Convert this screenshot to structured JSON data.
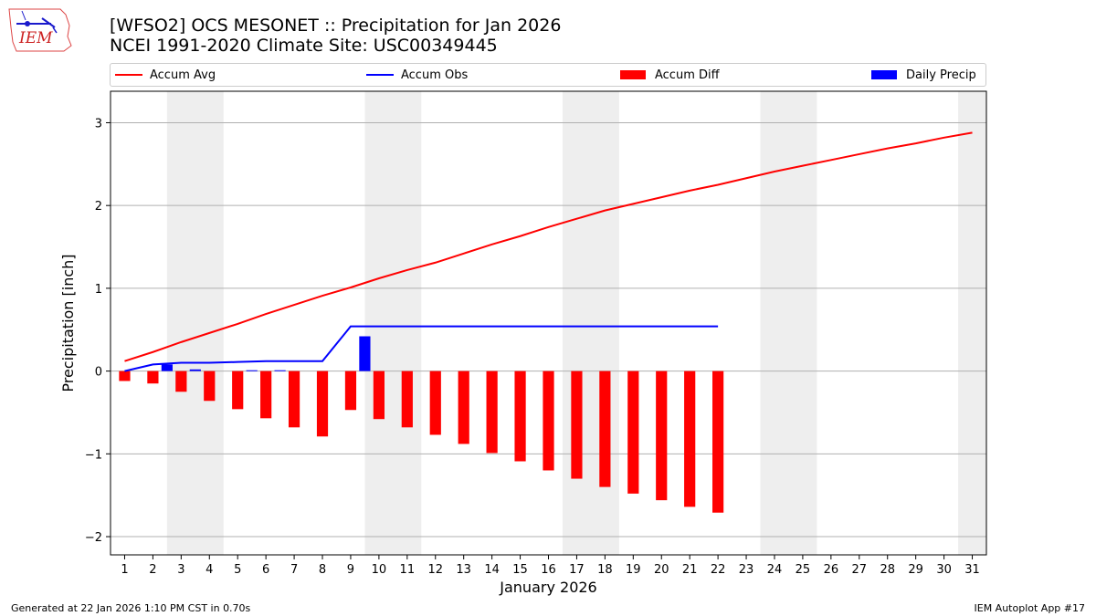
{
  "title_line1": "[WFSO2] OCS MESONET :: Precipitation for Jan 2026",
  "title_line2": "NCEI 1991-2020 Climate Site: USC00349445",
  "logo_text": "IEM",
  "footer_left": "Generated at 22 Jan 2026 1:10 PM CST in 0.70s",
  "footer_right": "IEM Autoplot App #17",
  "colors": {
    "avg": "#ff0000",
    "obs": "#0000ff",
    "diff": "#ff0000",
    "daily": "#0000ff",
    "weekend": "#eeeeee",
    "grid": "#b0b0b0"
  },
  "chart_data": {
    "type": "bar",
    "xlabel": "January 2026",
    "ylabel": "Precipitation [inch]",
    "xlim": [
      0.5,
      31.5
    ],
    "ylim": [
      -2.22,
      3.38
    ],
    "yticks": [
      -2,
      -1,
      0,
      1,
      2,
      3
    ],
    "ytick_labels": [
      "−2",
      "−1",
      "0",
      "1",
      "2",
      "3"
    ],
    "x": [
      1,
      2,
      3,
      4,
      5,
      6,
      7,
      8,
      9,
      10,
      11,
      12,
      13,
      14,
      15,
      16,
      17,
      18,
      19,
      20,
      21,
      22,
      23,
      24,
      25,
      26,
      27,
      28,
      29,
      30,
      31
    ],
    "legend_position": "top",
    "weekend_bands": [
      [
        2.5,
        4.5
      ],
      [
        9.5,
        11.5
      ],
      [
        16.5,
        18.5
      ],
      [
        23.5,
        25.5
      ],
      [
        30.5,
        31.5
      ]
    ],
    "series": [
      {
        "name": "Accum Avg",
        "kind": "line",
        "x": [
          1,
          2,
          3,
          4,
          5,
          6,
          7,
          8,
          9,
          10,
          11,
          12,
          13,
          14,
          15,
          16,
          17,
          18,
          19,
          20,
          21,
          22,
          23,
          24,
          25,
          26,
          27,
          28,
          29,
          30,
          31
        ],
        "values": [
          0.12,
          0.23,
          0.35,
          0.46,
          0.57,
          0.69,
          0.8,
          0.91,
          1.01,
          1.12,
          1.22,
          1.31,
          1.42,
          1.53,
          1.63,
          1.74,
          1.84,
          1.94,
          2.02,
          2.1,
          2.18,
          2.25,
          2.33,
          2.41,
          2.48,
          2.55,
          2.62,
          2.69,
          2.75,
          2.82,
          2.88
        ]
      },
      {
        "name": "Accum Obs",
        "kind": "line",
        "x": [
          1,
          2,
          3,
          4,
          5,
          6,
          7,
          8,
          9,
          10,
          11,
          12,
          13,
          14,
          15,
          16,
          17,
          18,
          19,
          20,
          21,
          22
        ],
        "values": [
          0.0,
          0.08,
          0.1,
          0.1,
          0.11,
          0.12,
          0.12,
          0.12,
          0.54,
          0.54,
          0.54,
          0.54,
          0.54,
          0.54,
          0.54,
          0.54,
          0.54,
          0.54,
          0.54,
          0.54,
          0.54,
          0.54
        ]
      },
      {
        "name": "Accum Diff",
        "kind": "bar",
        "x": [
          1,
          2,
          3,
          4,
          5,
          6,
          7,
          8,
          9,
          10,
          11,
          12,
          13,
          14,
          15,
          16,
          17,
          18,
          19,
          20,
          21,
          22
        ],
        "values": [
          -0.12,
          -0.15,
          -0.25,
          -0.36,
          -0.46,
          -0.57,
          -0.68,
          -0.79,
          -0.47,
          -0.58,
          -0.68,
          -0.77,
          -0.88,
          -0.99,
          -1.09,
          -1.2,
          -1.3,
          -1.4,
          -1.48,
          -1.56,
          -1.64,
          -1.71
        ]
      },
      {
        "name": "Daily Precip",
        "kind": "bar",
        "x": [
          1,
          2,
          3,
          4,
          5,
          6,
          7,
          8,
          9,
          10,
          11,
          12,
          13,
          14,
          15,
          16,
          17,
          18,
          19,
          20,
          21,
          22
        ],
        "values": [
          0.0,
          0.08,
          0.02,
          0.0,
          0.01,
          0.01,
          0.0,
          0.0,
          0.42,
          0.0,
          0.0,
          0.0,
          0.0,
          0.0,
          0.0,
          0.0,
          0.0,
          0.0,
          0.0,
          0.0,
          0.0,
          0.0
        ]
      }
    ]
  }
}
